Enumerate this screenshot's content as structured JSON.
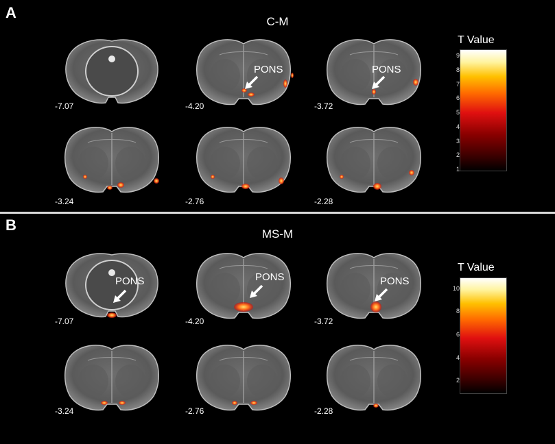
{
  "panels": [
    {
      "label": "A",
      "title": "C-M",
      "colorbar": {
        "title": "T Value",
        "ticks": [
          "9",
          "8",
          "7",
          "6",
          "5",
          "4",
          "3",
          "2",
          "1"
        ],
        "max": 9.5,
        "min": 1
      },
      "slices": [
        {
          "coord": "-7.07",
          "has_pons": false
        },
        {
          "coord": "-4.20",
          "has_pons": true,
          "pons_label": "PONS"
        },
        {
          "coord": "-3.72",
          "has_pons": true,
          "pons_label": "PONS"
        },
        {
          "coord": "-3.24",
          "has_pons": false
        },
        {
          "coord": "-2.76",
          "has_pons": false
        },
        {
          "coord": "-2.28",
          "has_pons": false
        }
      ]
    },
    {
      "label": "B",
      "title": "MS-M",
      "colorbar": {
        "title": "T Value",
        "ticks": [
          "10",
          "8",
          "6",
          "4",
          "2"
        ],
        "max": 11,
        "min": 1
      },
      "slices": [
        {
          "coord": "-7.07",
          "has_pons": true,
          "pons_label": "PONS"
        },
        {
          "coord": "-4.20",
          "has_pons": true,
          "pons_label": "PONS"
        },
        {
          "coord": "-3.72",
          "has_pons": true,
          "pons_label": "PONS"
        },
        {
          "coord": "-3.24",
          "has_pons": false
        },
        {
          "coord": "-2.76",
          "has_pons": false
        },
        {
          "coord": "-2.28",
          "has_pons": false
        }
      ]
    }
  ],
  "colors": {
    "background": "#000000",
    "divider": "#d9d9d9",
    "activation_hot": "#ff5a1a",
    "activation_core": "#ffd24a"
  }
}
